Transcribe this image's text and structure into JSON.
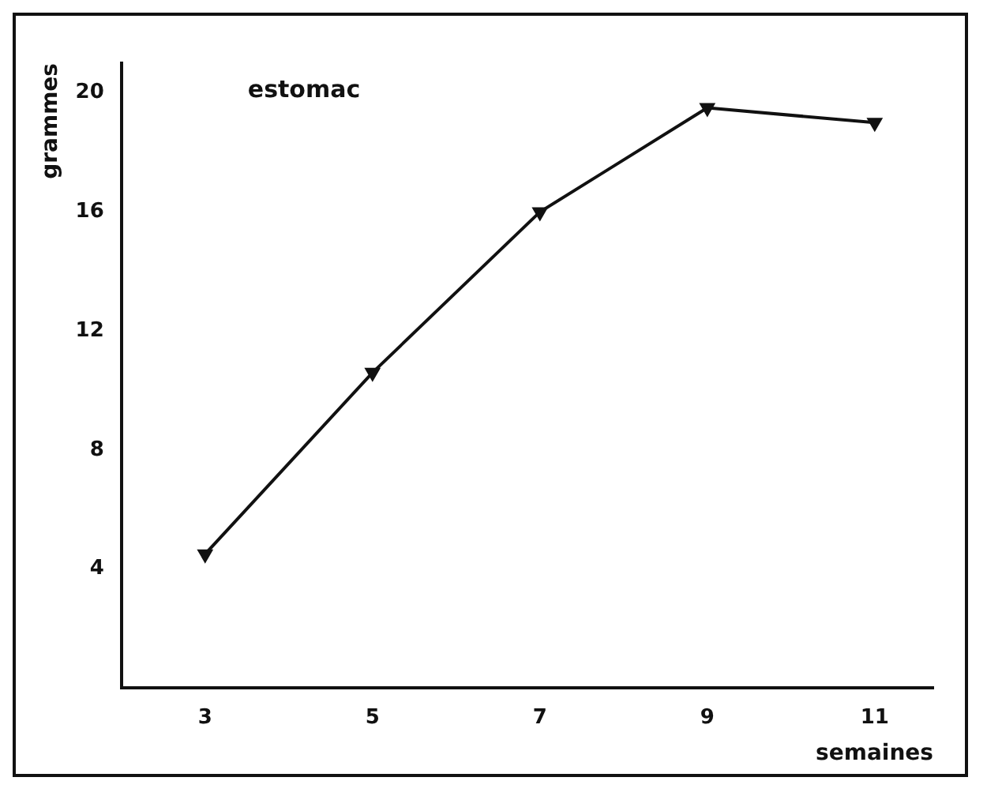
{
  "chart_data": {
    "type": "line",
    "xlabel": "semaines",
    "ylabel": "grammes",
    "annotations": [
      "estomac"
    ],
    "x": [
      3,
      5,
      7,
      9,
      11
    ],
    "series": [
      {
        "color": "#111111",
        "values": [
          4.5,
          10.6,
          16.0,
          19.5,
          19.0
        ]
      }
    ],
    "xlim": [
      2,
      11.7
    ],
    "xticks": [
      3,
      5,
      7,
      9,
      11
    ],
    "ylim": [
      0,
      21
    ],
    "yticks": [
      4,
      8,
      12,
      16,
      20
    ],
    "grid": false,
    "legend": false,
    "marker": "triangle",
    "line_style": "solid"
  }
}
